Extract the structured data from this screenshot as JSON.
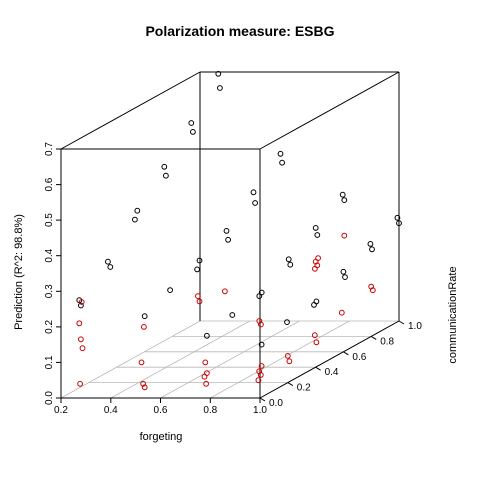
{
  "chart_data": {
    "type": "scatter",
    "title": "Polarization measure: ESBG",
    "xlabel": "forgeting",
    "ylabel": "Prediction (R^2: 98.8%)",
    "zlabel": "communicationRate",
    "xlim": [
      0.2,
      1.0
    ],
    "ylim": [
      0.0,
      1.0
    ],
    "zlim": [
      0.0,
      0.7
    ],
    "x_ticks": [
      "0.2",
      "0.4",
      "0.6",
      "0.8",
      "1.0"
    ],
    "y_ticks": [
      "0.0",
      "0.2",
      "0.4",
      "0.6",
      "0.8",
      "1.0"
    ],
    "z_ticks": [
      "0.0",
      "0.1",
      "0.2",
      "0.3",
      "0.4",
      "0.5",
      "0.6",
      "0.7"
    ],
    "grid": true,
    "legend": "none",
    "point_type": "open circle",
    "colors": {
      "predicted": "#000000",
      "observed": "#cc0000",
      "box": "#000000",
      "grid": "#b8b8b8"
    },
    "forgeting_levels": [
      0.28,
      0.53,
      0.78,
      1.0
    ],
    "communication_levels": [
      0.0,
      0.2,
      0.4,
      0.6,
      0.8,
      1.0
    ],
    "series": [
      {
        "name": "",
        "color": "#000000",
        "points": [
          {
            "x": 0.28,
            "y": 0.0,
            "z": 0.275
          },
          {
            "x": 0.28,
            "y": 0.0,
            "z": 0.26
          },
          {
            "x": 0.28,
            "y": 0.2,
            "z": 0.325
          },
          {
            "x": 0.28,
            "y": 0.2,
            "z": 0.34
          },
          {
            "x": 0.28,
            "y": 0.4,
            "z": 0.44
          },
          {
            "x": 0.28,
            "y": 0.4,
            "z": 0.415
          },
          {
            "x": 0.28,
            "y": 0.6,
            "z": 0.52
          },
          {
            "x": 0.28,
            "y": 0.6,
            "z": 0.495
          },
          {
            "x": 0.28,
            "y": 0.8,
            "z": 0.6
          },
          {
            "x": 0.28,
            "y": 0.8,
            "z": 0.575
          },
          {
            "x": 0.28,
            "y": 1.0,
            "z": 0.695
          },
          {
            "x": 0.28,
            "y": 1.0,
            "z": 0.655
          },
          {
            "x": 0.53,
            "y": 0.0,
            "z": 0.23
          },
          {
            "x": 0.53,
            "y": 0.2,
            "z": 0.26
          },
          {
            "x": 0.53,
            "y": 0.4,
            "z": 0.3
          },
          {
            "x": 0.53,
            "y": 0.4,
            "z": 0.275
          },
          {
            "x": 0.53,
            "y": 0.6,
            "z": 0.34
          },
          {
            "x": 0.53,
            "y": 0.6,
            "z": 0.315
          },
          {
            "x": 0.53,
            "y": 0.8,
            "z": 0.405
          },
          {
            "x": 0.53,
            "y": 0.8,
            "z": 0.375
          },
          {
            "x": 0.53,
            "y": 1.0,
            "z": 0.47
          },
          {
            "x": 0.53,
            "y": 1.0,
            "z": 0.445
          },
          {
            "x": 0.78,
            "y": 0.0,
            "z": 0.175
          },
          {
            "x": 0.78,
            "y": 0.2,
            "z": 0.19
          },
          {
            "x": 0.78,
            "y": 0.4,
            "z": 0.21
          },
          {
            "x": 0.78,
            "y": 0.4,
            "z": 0.2
          },
          {
            "x": 0.78,
            "y": 0.6,
            "z": 0.26
          },
          {
            "x": 0.78,
            "y": 0.6,
            "z": 0.245
          },
          {
            "x": 0.78,
            "y": 0.8,
            "z": 0.305
          },
          {
            "x": 0.78,
            "y": 0.8,
            "z": 0.285
          },
          {
            "x": 0.78,
            "y": 1.0,
            "z": 0.355
          },
          {
            "x": 0.78,
            "y": 1.0,
            "z": 0.34
          },
          {
            "x": 1.0,
            "y": 0.0,
            "z": 0.15
          },
          {
            "x": 1.0,
            "y": 0.2,
            "z": 0.17
          },
          {
            "x": 1.0,
            "y": 0.4,
            "z": 0.185
          },
          {
            "x": 1.0,
            "y": 0.4,
            "z": 0.175
          },
          {
            "x": 1.0,
            "y": 0.6,
            "z": 0.225
          },
          {
            "x": 1.0,
            "y": 0.6,
            "z": 0.21
          },
          {
            "x": 1.0,
            "y": 0.8,
            "z": 0.26
          },
          {
            "x": 1.0,
            "y": 0.8,
            "z": 0.245
          },
          {
            "x": 1.0,
            "y": 1.0,
            "z": 0.29
          },
          {
            "x": 1.0,
            "y": 1.0,
            "z": 0.275
          }
        ]
      },
      {
        "name": "",
        "color": "#cc0000",
        "points": [
          {
            "x": 0.28,
            "y": 0.0,
            "z": 0.27
          },
          {
            "x": 0.28,
            "y": 0.0,
            "z": 0.21
          },
          {
            "x": 0.28,
            "y": 0.0,
            "z": 0.165
          },
          {
            "x": 0.28,
            "y": 0.0,
            "z": 0.14
          },
          {
            "x": 0.28,
            "y": 0.0,
            "z": 0.04
          },
          {
            "x": 0.53,
            "y": 0.0,
            "z": 0.2
          },
          {
            "x": 0.53,
            "y": 0.0,
            "z": 0.1
          },
          {
            "x": 0.53,
            "y": 0.0,
            "z": 0.04
          },
          {
            "x": 0.53,
            "y": 0.0,
            "z": 0.03
          },
          {
            "x": 0.53,
            "y": 0.4,
            "z": 0.2
          },
          {
            "x": 0.53,
            "y": 0.4,
            "z": 0.185
          },
          {
            "x": 0.53,
            "y": 0.6,
            "z": 0.17
          },
          {
            "x": 0.78,
            "y": 0.0,
            "z": 0.1
          },
          {
            "x": 0.78,
            "y": 0.0,
            "z": 0.07
          },
          {
            "x": 0.78,
            "y": 0.0,
            "z": 0.06
          },
          {
            "x": 0.78,
            "y": 0.0,
            "z": 0.04
          },
          {
            "x": 0.78,
            "y": 0.4,
            "z": 0.13
          },
          {
            "x": 0.78,
            "y": 0.4,
            "z": 0.12
          },
          {
            "x": 0.78,
            "y": 0.8,
            "z": 0.22
          },
          {
            "x": 0.78,
            "y": 0.8,
            "z": 0.21
          },
          {
            "x": 0.78,
            "y": 0.8,
            "z": 0.2
          },
          {
            "x": 0.78,
            "y": 0.8,
            "z": 0.19
          },
          {
            "x": 0.78,
            "y": 1.0,
            "z": 0.24
          },
          {
            "x": 1.0,
            "y": 0.0,
            "z": 0.09
          },
          {
            "x": 1.0,
            "y": 0.0,
            "z": 0.075
          },
          {
            "x": 1.0,
            "y": 0.0,
            "z": 0.065
          },
          {
            "x": 1.0,
            "y": 0.0,
            "z": 0.05
          },
          {
            "x": 1.0,
            "y": 0.2,
            "z": 0.075
          },
          {
            "x": 1.0,
            "y": 0.2,
            "z": 0.06
          },
          {
            "x": 1.0,
            "y": 0.4,
            "z": 0.09
          },
          {
            "x": 1.0,
            "y": 0.4,
            "z": 0.07
          },
          {
            "x": 1.0,
            "y": 0.6,
            "z": 0.11
          },
          {
            "x": 1.0,
            "y": 0.8,
            "z": 0.14
          },
          {
            "x": 1.0,
            "y": 0.8,
            "z": 0.13
          }
        ]
      }
    ]
  }
}
